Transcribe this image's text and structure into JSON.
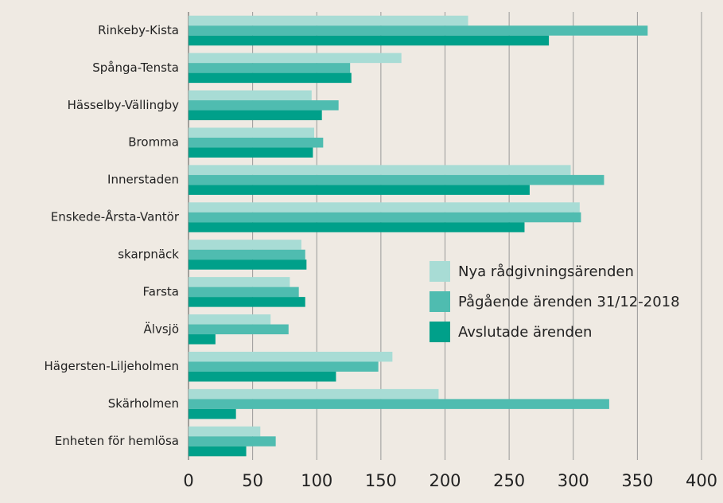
{
  "chart_data": {
    "type": "hbar",
    "categories": [
      "Rinkeby-Kista",
      "Spånga-Tensta",
      "Hässelby-Vällingby",
      "Bromma",
      "Innerstaden",
      "Enskede-Årsta-Vantör",
      "skarpnäck",
      "Farsta",
      "Älvsjö",
      "Hägersten-Liljeholmen",
      "Skärholmen",
      "Enheten för hemlösa"
    ],
    "series": [
      {
        "name": "Nya rådgivningsärenden",
        "color": "#a8dcd5",
        "values": [
          218,
          166,
          96,
          98,
          298,
          305,
          88,
          79,
          64,
          159,
          195,
          56
        ]
      },
      {
        "name": "Pågående ärenden 31/12-2018",
        "color": "#4fbcb0",
        "values": [
          358,
          126,
          117,
          105,
          324,
          306,
          91,
          86,
          78,
          148,
          328,
          68
        ]
      },
      {
        "name": "Avslutade ärenden",
        "color": "#00a08a",
        "values": [
          281,
          127,
          104,
          97,
          266,
          262,
          92,
          91,
          21,
          115,
          37,
          45
        ]
      }
    ],
    "xlim": [
      0,
      400
    ],
    "xticks": [
      0,
      50,
      100,
      150,
      200,
      250,
      300,
      350,
      400
    ],
    "grid": true,
    "legend": "right"
  }
}
